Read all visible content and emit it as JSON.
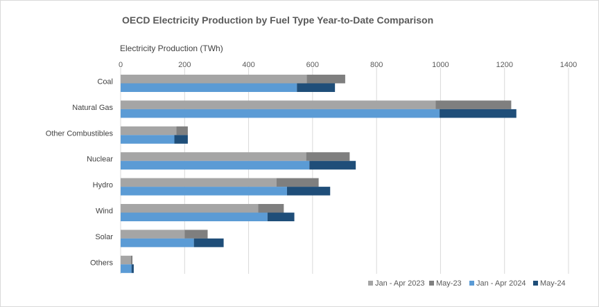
{
  "chart_data": {
    "type": "bar",
    "orientation": "horizontal",
    "stacked": true,
    "title": "OECD Electricity Production  by Fuel Type Year-to-Date Comparison",
    "xlabel": "Electricity Production (TWh)",
    "ylabel": "",
    "xlim": [
      0,
      1400
    ],
    "xticks": [
      0,
      200,
      400,
      600,
      800,
      1000,
      1200,
      1400
    ],
    "grid": true,
    "legend_position": "bottom-right",
    "categories": [
      "Coal",
      "Natural Gas",
      "Other Combustibles",
      "Nuclear",
      "Hydro",
      "Wind",
      "Solar",
      "Others"
    ],
    "bar_groups": [
      {
        "year": "2023",
        "series": [
          {
            "name": "Jan - Apr 2023",
            "color": "#a5a5a5",
            "values": [
              582,
              985,
              174,
              580,
              487,
              430,
              200,
              32
            ]
          },
          {
            "name": "May-23",
            "color": "#7f7f7f",
            "values": [
              120,
              236,
              36,
              136,
              132,
              80,
              72,
              5
            ]
          }
        ]
      },
      {
        "year": "2024",
        "series": [
          {
            "name": "Jan - Apr 2024",
            "color": "#5b9bd5",
            "values": [
              551,
              997,
              168,
              590,
              520,
              459,
              229,
              34
            ]
          },
          {
            "name": "May-24",
            "color": "#1f4e79",
            "values": [
              119,
              240,
              42,
              145,
              135,
              84,
              93,
              7
            ]
          }
        ]
      }
    ],
    "legend": [
      "Jan - Apr 2023",
      "May-23",
      "Jan - Apr 2024",
      "May-24"
    ]
  }
}
